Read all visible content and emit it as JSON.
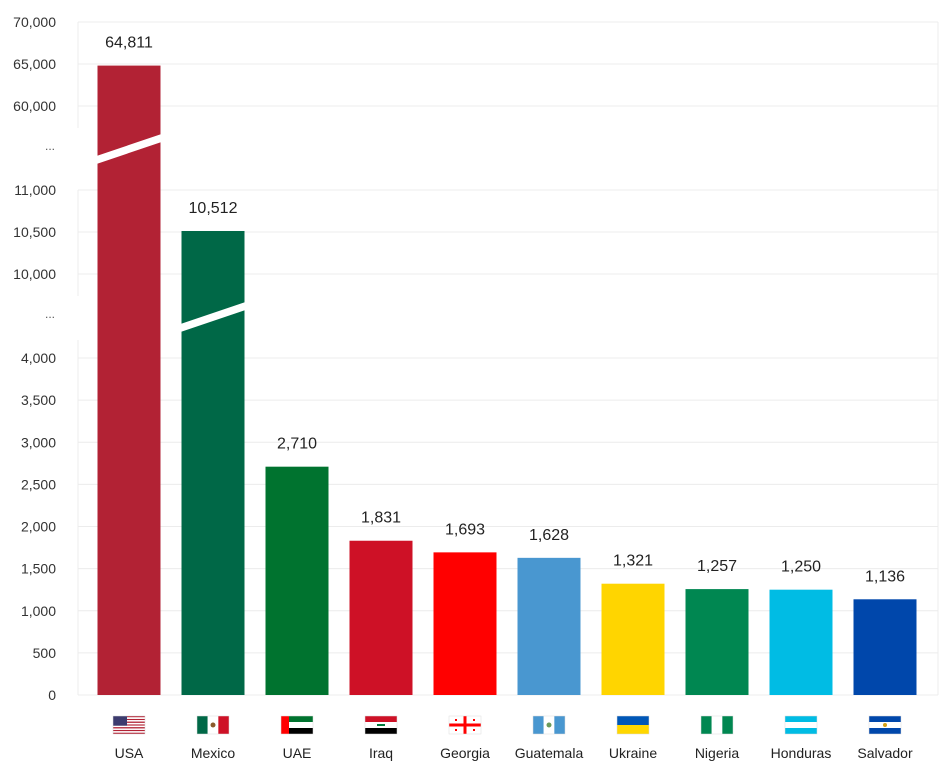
{
  "chart_data": {
    "type": "bar",
    "title": "",
    "xlabel": "",
    "ylabel": "",
    "axis_breaks": true,
    "y_segments": [
      {
        "ticks": [
          0,
          500,
          1000,
          1500,
          2000,
          2500,
          3000,
          3500,
          4000
        ]
      },
      {
        "ticks": [
          10000,
          10500,
          11000
        ]
      },
      {
        "ticks": [
          60000,
          65000,
          70000
        ]
      }
    ],
    "tick_labels": {
      "0": "0",
      "500": "500",
      "1000": "1,000",
      "1500": "1,500",
      "2000": "2,000",
      "2500": "2,500",
      "3000": "3,000",
      "3500": "3,500",
      "4000": "4,000",
      "10000": "10,000",
      "10500": "10,500",
      "11000": "11,000",
      "60000": "60,000",
      "65000": "65,000",
      "70000": "70,000"
    },
    "break_label": "...",
    "categories": [
      "USA",
      "Mexico",
      "UAE",
      "Iraq",
      "Georgia",
      "Guatemala",
      "Ukraine",
      "Nigeria",
      "Honduras",
      "Salvador"
    ],
    "values": [
      64811,
      10512,
      2710,
      1831,
      1693,
      1628,
      1321,
      1257,
      1250,
      1136
    ],
    "value_labels": [
      "64,811",
      "10,512",
      "2,710",
      "1,831",
      "1,693",
      "1,628",
      "1,321",
      "1,257",
      "1,250",
      "1,136"
    ],
    "colors": [
      "#B22234",
      "#006847",
      "#00732F",
      "#CE1126",
      "#FF0000",
      "#4997D0",
      "#FFD500",
      "#008751",
      "#00BCE4",
      "#0047AB"
    ],
    "flags": [
      "usa-flag",
      "mexico-flag",
      "uae-flag",
      "iraq-flag",
      "georgia-flag",
      "guatemala-flag",
      "ukraine-flag",
      "nigeria-flag",
      "honduras-flag",
      "salvador-flag"
    ],
    "grid": true,
    "legend": "none"
  }
}
